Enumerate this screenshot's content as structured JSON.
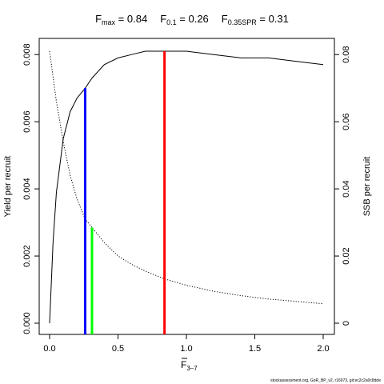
{
  "title": {
    "parts": [
      {
        "base": "F",
        "sub": "max",
        "value": " = 0.84"
      },
      {
        "base": "F",
        "sub": "0.1",
        "value": " = 0.26"
      },
      {
        "base": "F",
        "sub": "0.35SPR",
        "value": " = 0.31"
      }
    ]
  },
  "footer": "stockassessment.org, GoR_BP_v2, r16973, git:ec2c2a0c8dde",
  "chart_data": {
    "type": "line",
    "xlabel": {
      "base": "F",
      "sub": "3–7"
    },
    "ylabel_left": "Yield per recruit",
    "ylabel_right": "SSB per recruit",
    "xlim": [
      0,
      2.0
    ],
    "ylim_left": [
      0,
      0.0081
    ],
    "ylim_right": [
      0,
      0.081
    ],
    "x_ticks": [
      {
        "v": 0,
        "l": "0.0"
      },
      {
        "v": 0.5,
        "l": "0.5"
      },
      {
        "v": 1.0,
        "l": "1.0"
      },
      {
        "v": 1.5,
        "l": "1.5"
      },
      {
        "v": 2.0,
        "l": "2.0"
      }
    ],
    "y_left_ticks": [
      {
        "v": 0,
        "l": "0.000"
      },
      {
        "v": 0.002,
        "l": "0.002"
      },
      {
        "v": 0.004,
        "l": "0.004"
      },
      {
        "v": 0.006,
        "l": "0.006"
      },
      {
        "v": 0.008,
        "l": "0.008"
      }
    ],
    "y_right_ticks": [
      {
        "v": 0,
        "l": "0"
      },
      {
        "v": 0.02,
        "l": "0.02"
      },
      {
        "v": 0.04,
        "l": "0.04"
      },
      {
        "v": 0.06,
        "l": "0.06"
      },
      {
        "v": 0.08,
        "l": "0.08"
      }
    ],
    "series": [
      {
        "axis": "left",
        "style": "solid",
        "color": "#000000",
        "x": [
          0,
          0.025,
          0.05,
          0.1,
          0.15,
          0.2,
          0.26,
          0.31,
          0.4,
          0.5,
          0.6,
          0.7,
          0.84,
          1.0,
          1.2,
          1.4,
          1.6,
          1.8,
          2.0
        ],
        "y": [
          0.0,
          0.0024,
          0.0039,
          0.0055,
          0.0063,
          0.0067,
          0.007,
          0.0073,
          0.0077,
          0.0079,
          0.008,
          0.0081,
          0.0081,
          0.0081,
          0.008,
          0.0079,
          0.0079,
          0.0078,
          0.0077
        ]
      },
      {
        "axis": "right",
        "style": "dotted",
        "color": "#000000",
        "x": [
          0,
          0.05,
          0.1,
          0.15,
          0.2,
          0.26,
          0.31,
          0.4,
          0.5,
          0.6,
          0.7,
          0.84,
          1.0,
          1.2,
          1.4,
          1.6,
          1.8,
          2.0
        ],
        "y": [
          0.081,
          0.066,
          0.054,
          0.044,
          0.037,
          0.031,
          0.0285,
          0.024,
          0.02,
          0.0175,
          0.0155,
          0.0132,
          0.0113,
          0.0095,
          0.0082,
          0.0072,
          0.0065,
          0.0058
        ]
      }
    ],
    "reference_lines": [
      {
        "label": "F0.1",
        "x": 0.26,
        "y": 0.007,
        "axis": "left",
        "color": "#0000ff"
      },
      {
        "label": "F0.35SPR",
        "x": 0.31,
        "y": 0.0285,
        "axis": "right",
        "color": "#00ff00"
      },
      {
        "label": "Fmax",
        "x": 0.84,
        "y": 0.0081,
        "axis": "left",
        "color": "#ff0000"
      }
    ]
  }
}
